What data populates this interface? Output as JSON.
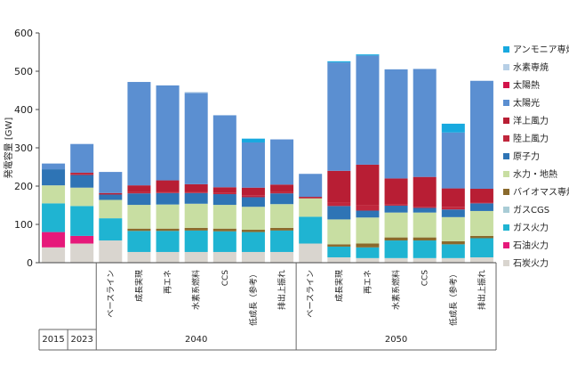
{
  "chart_data": {
    "type": "bar",
    "stacked": true,
    "ylabel": "発電容量 [GW]",
    "ylim": [
      0,
      600
    ],
    "yticks": [
      0,
      100,
      200,
      300,
      400,
      500,
      600
    ],
    "grid": false,
    "legend_position": "right",
    "categories": [
      "2015",
      "2023",
      "ベースライン",
      "成長実現",
      "再エネ",
      "水素系燃料",
      "CCS",
      "低成長（参考）",
      "排出上振れ",
      "ベースライン",
      "成長実現",
      "再エネ",
      "水素系燃料",
      "CCS",
      "低成長（参考）",
      "排出上振れ"
    ],
    "groups": [
      {
        "label": "2015",
        "from": 0,
        "to": 0
      },
      {
        "label": "2023",
        "from": 1,
        "to": 1
      },
      {
        "label": "2040",
        "from": 2,
        "to": 8
      },
      {
        "label": "2050",
        "from": 9,
        "to": 15
      }
    ],
    "series": [
      {
        "name": "石炭火力",
        "color": "#d9d5cf",
        "values": [
          40,
          50,
          58,
          28,
          28,
          28,
          28,
          28,
          28,
          50,
          14,
          12,
          12,
          12,
          12,
          14
        ]
      },
      {
        "name": "石油火力",
        "color": "#e6197a",
        "values": [
          40,
          20,
          0,
          0,
          0,
          0,
          0,
          0,
          0,
          0,
          0,
          0,
          0,
          0,
          0,
          0
        ]
      },
      {
        "name": "ガス火力",
        "color": "#1fb4d2",
        "values": [
          75,
          78,
          58,
          55,
          55,
          56,
          54,
          52,
          56,
          70,
          28,
          28,
          46,
          46,
          36,
          50
        ]
      },
      {
        "name": "ガスCGS",
        "color": "#a9ccd6",
        "values": [
          0,
          0,
          0,
          0,
          0,
          0,
          0,
          0,
          0,
          0,
          0,
          0,
          0,
          0,
          0,
          0
        ]
      },
      {
        "name": "バイオマス専焼",
        "color": "#8a6a2c",
        "values": [
          0,
          0,
          0,
          6,
          6,
          7,
          7,
          6,
          7,
          0,
          6,
          10,
          8,
          8,
          8,
          6
        ]
      },
      {
        "name": "水力・地熱",
        "color": "#c8dea2",
        "values": [
          47,
          48,
          48,
          62,
          63,
          63,
          62,
          60,
          62,
          48,
          65,
          68,
          65,
          65,
          63,
          65
        ]
      },
      {
        "name": "原子力",
        "color": "#2e74b5",
        "values": [
          42,
          33,
          14,
          30,
          30,
          28,
          28,
          25,
          28,
          0,
          35,
          18,
          18,
          12,
          20,
          20
        ]
      },
      {
        "name": "陸上風力",
        "color": "#c0263c",
        "values": [
          0,
          3,
          0,
          3,
          3,
          3,
          3,
          5,
          3,
          0,
          10,
          15,
          3,
          3,
          7,
          3
        ]
      },
      {
        "name": "洋上風力",
        "color": "#b81e34",
        "values": [
          0,
          3,
          4,
          18,
          30,
          20,
          15,
          20,
          20,
          4,
          82,
          105,
          68,
          78,
          48,
          35
        ]
      },
      {
        "name": "太陽光",
        "color": "#5b8fd1",
        "values": [
          15,
          75,
          55,
          270,
          248,
          238,
          188,
          118,
          118,
          60,
          283,
          285,
          285,
          282,
          146,
          282
        ]
      },
      {
        "name": "太陽熱",
        "color": "#d2134a",
        "values": [
          0,
          0,
          0,
          0,
          0,
          0,
          0,
          0,
          0,
          0,
          0,
          0,
          0,
          0,
          0,
          0
        ]
      },
      {
        "name": "水素専焼",
        "color": "#b7cfe6",
        "values": [
          0,
          0,
          0,
          0,
          0,
          3,
          0,
          0,
          0,
          0,
          0,
          0,
          0,
          0,
          0,
          0
        ]
      },
      {
        "name": "アンモニア専焼",
        "color": "#18a9df",
        "values": [
          0,
          0,
          0,
          0,
          0,
          0,
          0,
          10,
          0,
          0,
          3,
          3,
          0,
          0,
          23,
          0
        ]
      }
    ]
  }
}
